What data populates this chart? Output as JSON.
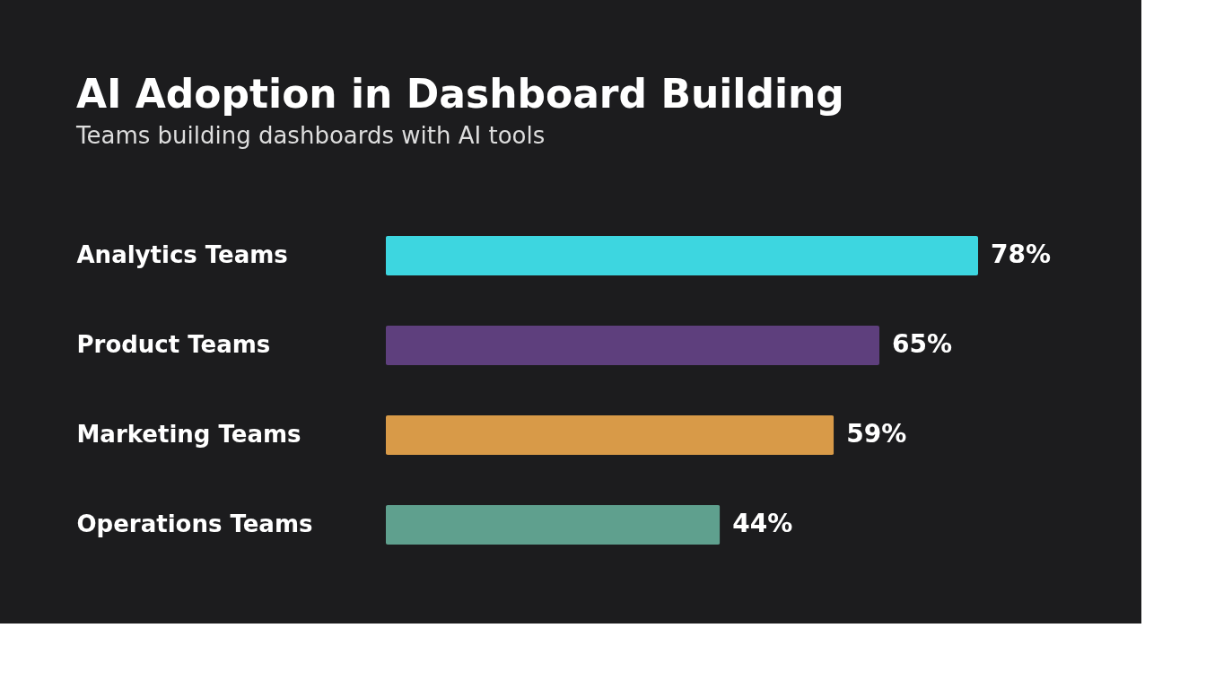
{
  "chart_data": {
    "type": "bar",
    "orientation": "horizontal",
    "title": "AI Adoption in Dashboard Building",
    "subtitle": "Teams building dashboards with AI tools",
    "categories": [
      "Analytics Teams",
      "Product Teams",
      "Marketing Teams",
      "Operations Teams"
    ],
    "values": [
      78,
      65,
      59,
      44
    ],
    "colors": [
      "#3dd6e0",
      "#5e3f7d",
      "#d89a48",
      "#5fa08e"
    ],
    "value_labels": [
      "78%",
      "65%",
      "59%",
      "44%"
    ]
  }
}
